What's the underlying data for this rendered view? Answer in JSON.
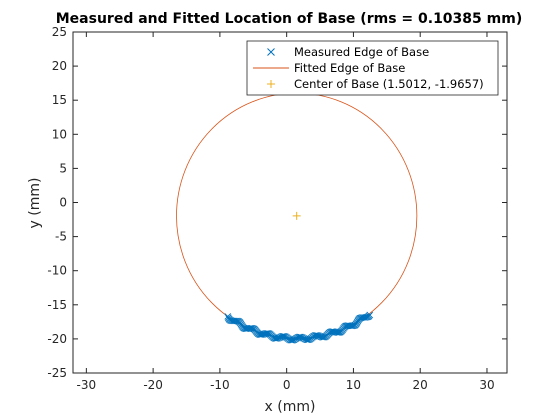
{
  "chart_data": {
    "type": "scatter",
    "title": "Measured and Fitted Location of Base (rms = 0.10385 mm)",
    "xlabel": "x (mm)",
    "ylabel": "y (mm)",
    "xlim": [
      -32,
      33
    ],
    "ylim": [
      -25,
      25
    ],
    "xticks": [
      -30,
      -20,
      -10,
      0,
      10,
      20,
      30
    ],
    "yticks": [
      -25,
      -20,
      -15,
      -10,
      -5,
      0,
      5,
      10,
      15,
      20,
      25
    ],
    "xtick_labels": [
      "-30",
      "-20",
      "-10",
      "0",
      "10",
      "20",
      "30"
    ],
    "ytick_labels": [
      "-25",
      "-20",
      "-15",
      "-10",
      "-5",
      "0",
      "5",
      "10",
      "15",
      "20",
      "25"
    ],
    "grid": false,
    "legend_position": "top-right",
    "colors": {
      "measured": "#0072BD",
      "fitted": "#D95319",
      "center": "#EDB120"
    },
    "series": [
      {
        "name": "Measured Edge of Base",
        "kind": "scatter",
        "marker": "x",
        "angle_range_deg": [
          -125,
          -53
        ],
        "center": [
          1.5012,
          -1.9657
        ],
        "radius": 18.0,
        "point_count": 140
      },
      {
        "name": "Fitted Edge of Base",
        "kind": "circle",
        "center": [
          1.5012,
          -1.9657
        ],
        "radius": 18.0
      },
      {
        "name": "Center of Base (1.5012, -1.9657)",
        "kind": "point",
        "marker": "+",
        "x": 1.5012,
        "y": -1.9657
      }
    ]
  }
}
